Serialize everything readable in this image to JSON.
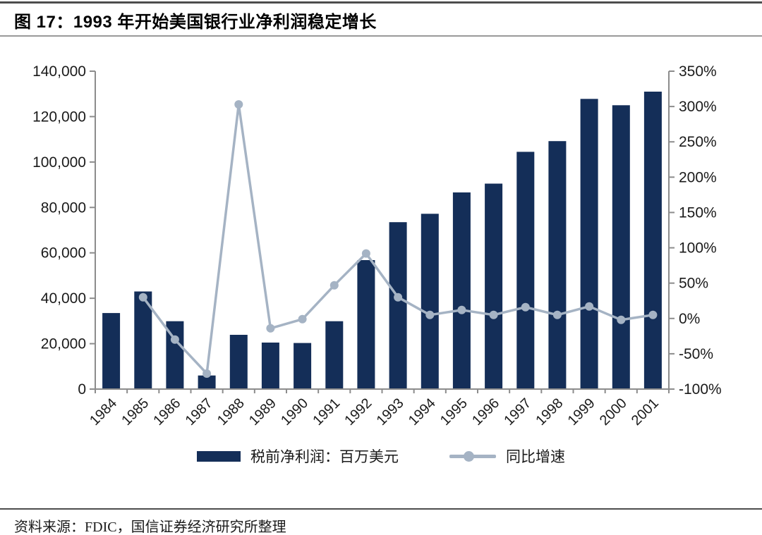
{
  "figure": {
    "title": "图 17：1993 年开始美国银行业净利润稳定增长",
    "source": "资料来源：FDIC，国信证券经济研究所整理"
  },
  "legend": {
    "bar_label": "税前净利润：百万美元",
    "line_label": "同比增速"
  },
  "colors": {
    "bar": "#142E58",
    "line": "#A5B3C4",
    "axis": "#8C8C8C",
    "text": "#1A1A1A",
    "rule_dark": "#4D4D4D",
    "rule_light": "#999999"
  },
  "chart_data": {
    "type": "bar",
    "subtype": "bar-line-combo",
    "title": "图 17：1993 年开始美国银行业净利润稳定增长",
    "categories": [
      "1984",
      "1985",
      "1986",
      "1987",
      "1988",
      "1989",
      "1990",
      "1991",
      "1992",
      "1993",
      "1994",
      "1995",
      "1996",
      "1997",
      "1998",
      "1999",
      "2000",
      "2001"
    ],
    "series": [
      {
        "name": "税前净利润：百万美元",
        "type": "bar",
        "axis": "left",
        "unit": "百万美元",
        "values": [
          33500,
          43000,
          29900,
          6000,
          23900,
          20500,
          20300,
          29900,
          56800,
          73500,
          77200,
          86600,
          90500,
          104500,
          109200,
          127800,
          125000,
          131000
        ]
      },
      {
        "name": "同比增速",
        "type": "line",
        "axis": "right",
        "unit": "%",
        "values": [
          null,
          30,
          -30,
          -78,
          303,
          -14,
          -1,
          47,
          92,
          30,
          5,
          12,
          5,
          16,
          5,
          17,
          -2,
          5
        ]
      }
    ],
    "left_axis": {
      "min": 0,
      "max": 140000,
      "step": 20000,
      "format": "thousands"
    },
    "right_axis": {
      "min": -100,
      "max": 350,
      "step": 50,
      "format": "percent"
    },
    "grid": false,
    "legend_position": "bottom"
  }
}
